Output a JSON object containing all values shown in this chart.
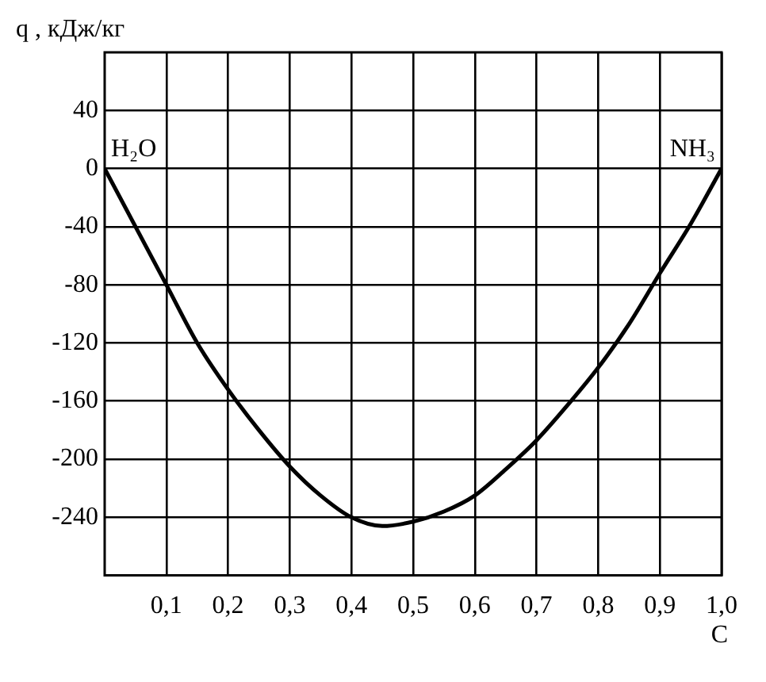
{
  "chart_data": {
    "type": "line",
    "xlabel": "C",
    "ylabel": "q , кДж/кг",
    "x": [
      0,
      0.05,
      0.1,
      0.15,
      0.2,
      0.25,
      0.3,
      0.35,
      0.4,
      0.45,
      0.5,
      0.55,
      0.6,
      0.65,
      0.7,
      0.75,
      0.8,
      0.85,
      0.9,
      0.95,
      1.0
    ],
    "series": [
      {
        "color": "#000000",
        "values": [
          0,
          -40,
          -80,
          -120,
          -152,
          -180,
          -205,
          -225,
          -240,
          -246,
          -243,
          -236,
          -225,
          -207,
          -187,
          -163,
          -137,
          -107,
          -72,
          -38,
          0
        ]
      }
    ],
    "xlim": [
      0,
      1.0
    ],
    "xticks": [
      {
        "value": 0.1,
        "label": "0,1"
      },
      {
        "value": 0.2,
        "label": "0,2"
      },
      {
        "value": 0.3,
        "label": "0,3"
      },
      {
        "value": 0.4,
        "label": "0,4"
      },
      {
        "value": 0.5,
        "label": "0,5"
      },
      {
        "value": 0.6,
        "label": "0,6"
      },
      {
        "value": 0.7,
        "label": "0,7"
      },
      {
        "value": 0.8,
        "label": "0,8"
      },
      {
        "value": 0.9,
        "label": "0,9"
      },
      {
        "value": 1.0,
        "label": "1,0"
      }
    ],
    "ylim": [
      -280,
      80
    ],
    "yticks": [
      40,
      0,
      -40,
      -80,
      -120,
      -160,
      -200,
      -240
    ],
    "grid": true,
    "legend": false,
    "marker": "none",
    "line_style": "solid",
    "annotations": [
      {
        "text": "H₂O",
        "x": 0,
        "y": 0
      },
      {
        "text": "NH₃",
        "x": 1.0,
        "y": 0
      }
    ]
  }
}
